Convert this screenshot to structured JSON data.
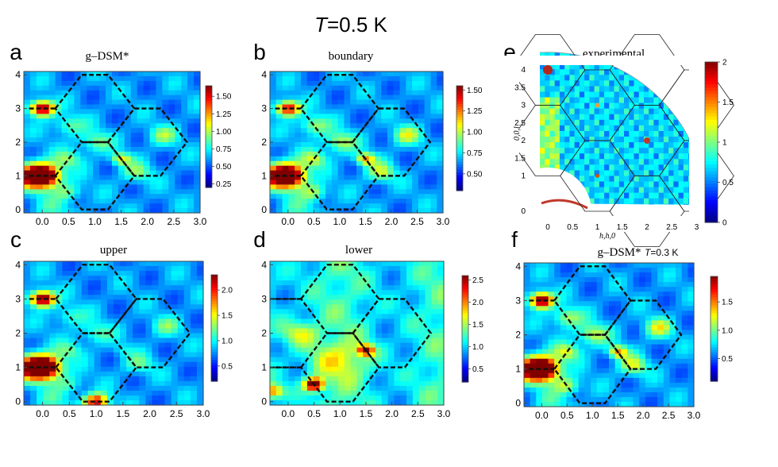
{
  "figure": {
    "title_italic": "T",
    "title_rest": "=0.5 K"
  },
  "chart_data": [
    {
      "type": "heatmap",
      "panel_label": "a",
      "title": "g–DSM*",
      "x_ticks": [
        "0.0",
        "0.5",
        "1.0",
        "1.5",
        "2.0",
        "2.5",
        "3.0"
      ],
      "y_ticks": [
        "0",
        "1",
        "2",
        "3",
        "4"
      ],
      "xlim": [
        -0.35,
        3.0
      ],
      "ylim": [
        -0.1,
        4.1
      ],
      "colorbar_ticks": [
        "0.25",
        "0.50",
        "0.75",
        "1.00",
        "1.25",
        "1.50"
      ],
      "colorbar_range": [
        0.2,
        1.65
      ],
      "peaks": [
        {
          "x": 0.0,
          "y": 1.0,
          "value": 1.6
        },
        {
          "x": 0.0,
          "y": 3.0,
          "value": 1.4
        },
        {
          "x": 1.5,
          "y": 1.5,
          "value": 1.1
        },
        {
          "x": 1.0,
          "y": 2.0,
          "value": 0.9
        }
      ]
    },
    {
      "type": "heatmap",
      "panel_label": "b",
      "title": "boundary",
      "x_ticks": [
        "0.0",
        "0.5",
        "1.0",
        "1.5",
        "2.0",
        "2.5",
        "3.0"
      ],
      "y_ticks": [
        "0",
        "1",
        "2",
        "3",
        "4"
      ],
      "xlim": [
        -0.35,
        3.0
      ],
      "ylim": [
        -0.1,
        4.1
      ],
      "colorbar_ticks": [
        "0.50",
        "0.75",
        "1.00",
        "1.25",
        "1.50"
      ],
      "colorbar_range": [
        0.3,
        1.55
      ],
      "peaks": [
        {
          "x": 0.0,
          "y": 1.0,
          "value": 1.5
        },
        {
          "x": 0.0,
          "y": 3.0,
          "value": 1.3
        },
        {
          "x": 1.5,
          "y": 1.5,
          "value": 1.2
        }
      ]
    },
    {
      "type": "heatmap",
      "panel_label": "c",
      "title": "upper",
      "x_ticks": [
        "0.0",
        "0.5",
        "1.0",
        "1.5",
        "2.0",
        "2.5",
        "3.0"
      ],
      "y_ticks": [
        "0",
        "1",
        "2",
        "3",
        "4"
      ],
      "xlim": [
        -0.35,
        3.0
      ],
      "ylim": [
        -0.1,
        4.1
      ],
      "colorbar_ticks": [
        "0.5",
        "1.0",
        "1.5",
        "2.0"
      ],
      "colorbar_range": [
        0.2,
        2.3
      ],
      "peaks": [
        {
          "x": 0.0,
          "y": 1.0,
          "value": 2.2
        },
        {
          "x": 0.0,
          "y": 3.0,
          "value": 2.0
        },
        {
          "x": 1.0,
          "y": 0.0,
          "value": 1.7
        }
      ]
    },
    {
      "type": "heatmap",
      "panel_label": "d",
      "title": "lower",
      "x_ticks": [
        "0.0",
        "0.5",
        "1.0",
        "1.5",
        "2.0",
        "2.5",
        "3.0"
      ],
      "y_ticks": [
        "0",
        "1",
        "2",
        "3",
        "4"
      ],
      "xlim": [
        -0.35,
        3.0
      ],
      "ylim": [
        -0.1,
        4.1
      ],
      "colorbar_ticks": [
        "0.5",
        "1.0",
        "1.5",
        "2.0",
        "2.5"
      ],
      "colorbar_range": [
        0.2,
        2.6
      ],
      "peaks": [
        {
          "x": 0.5,
          "y": 0.5,
          "value": 2.5
        },
        {
          "x": 1.5,
          "y": 1.5,
          "value": 2.2
        },
        {
          "x": -0.3,
          "y": 0.3,
          "value": 1.8
        }
      ]
    },
    {
      "type": "heatmap",
      "panel_label": "e",
      "title": "experimental",
      "x_ticks": [
        "0",
        "0.5",
        "1",
        "1.5",
        "2",
        "2.5",
        "3"
      ],
      "y_ticks": [
        "0",
        "1",
        "1.5",
        "2",
        "2.5",
        "3",
        "3.5",
        "4"
      ],
      "xlabel": "h,h,0",
      "ylabel": "0,0,l",
      "colorbar_ticks": [
        "0",
        "0.5",
        "1",
        "1.5",
        "2"
      ],
      "colorbar_range": [
        0,
        2
      ]
    },
    {
      "type": "heatmap",
      "panel_label": "f",
      "title": "g–DSM*",
      "annotation_italic": "T",
      "annotation_rest": "=0.3 K",
      "x_ticks": [
        "0.0",
        "0.5",
        "1.0",
        "1.5",
        "2.0",
        "2.5",
        "3.0"
      ],
      "y_ticks": [
        "0",
        "1",
        "2",
        "3",
        "4"
      ],
      "xlim": [
        -0.35,
        3.0
      ],
      "ylim": [
        -0.1,
        4.1
      ],
      "colorbar_ticks": [
        "0.5",
        "1.0",
        "1.5"
      ],
      "colorbar_range": [
        0.1,
        1.95
      ],
      "peaks": [
        {
          "x": 0.0,
          "y": 1.0,
          "value": 1.9
        },
        {
          "x": 0.0,
          "y": 3.0,
          "value": 1.7
        },
        {
          "x": 1.5,
          "y": 1.5,
          "value": 1.3
        }
      ]
    }
  ]
}
